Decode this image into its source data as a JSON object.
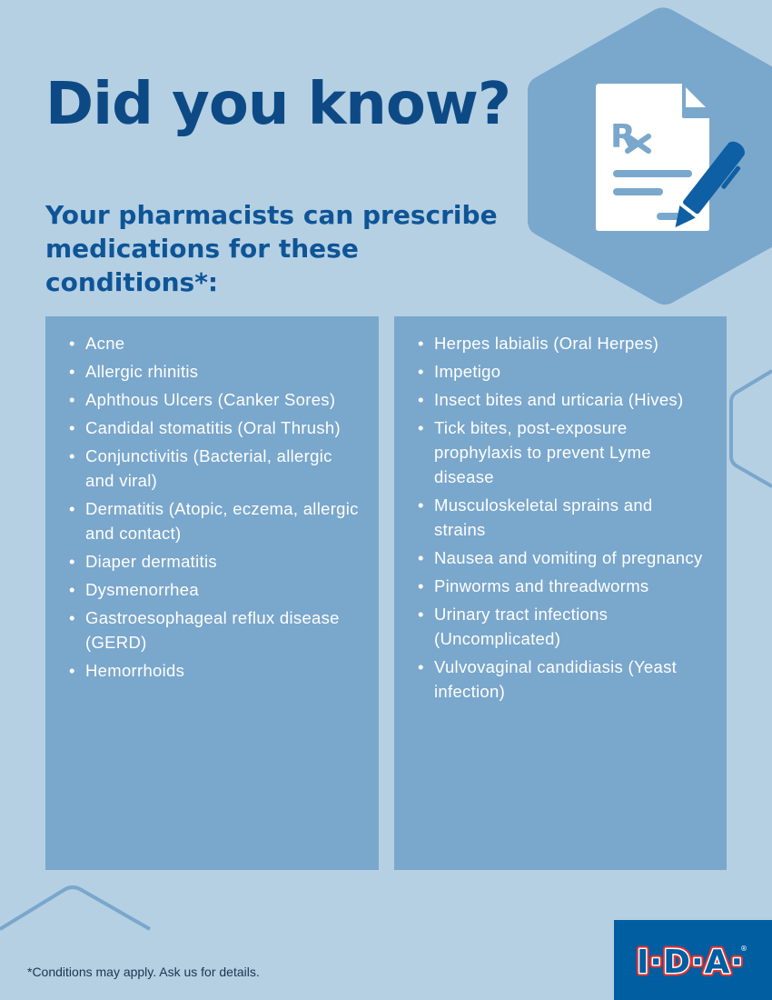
{
  "header": {
    "title": "Did you know?",
    "subtitle": "Your pharmacists can prescribe medications for these conditions*:"
  },
  "icon": "prescription-document-pen-icon",
  "conditions_left": [
    "Acne",
    "Allergic rhinitis",
    "Aphthous Ulcers (Canker Sores)",
    "Candidal stomatitis (Oral Thrush)",
    "Conjunctivitis (Bacterial, allergic and viral)",
    "Dermatitis (Atopic, eczema, allergic and contact)",
    "Diaper dermatitis",
    "Dysmenorrhea",
    "Gastroesophageal reflux disease (GERD)",
    "Hemorrhoids"
  ],
  "conditions_right": [
    "Herpes labialis (Oral Herpes)",
    "Impetigo",
    "Insect bites and urticaria (Hives)",
    "Tick bites, post-exposure prophylaxis to prevent Lyme disease",
    "Musculoskeletal sprains and strains",
    "Nausea and vomiting of pregnancy",
    "Pinworms and threadworms",
    "Urinary tract infections (Uncomplicated)",
    "Vulvovaginal candidiasis (Yeast infection)"
  ],
  "footer": {
    "note": "*Conditions may apply. Ask us for details."
  },
  "logo": {
    "text": "I·D·A",
    "registered": "®"
  },
  "colors": {
    "background": "#b5d0e3",
    "panel": "#7aa7cc",
    "title": "#0d4a85",
    "brand": "#005ea1",
    "logo_red": "#e5322d"
  }
}
